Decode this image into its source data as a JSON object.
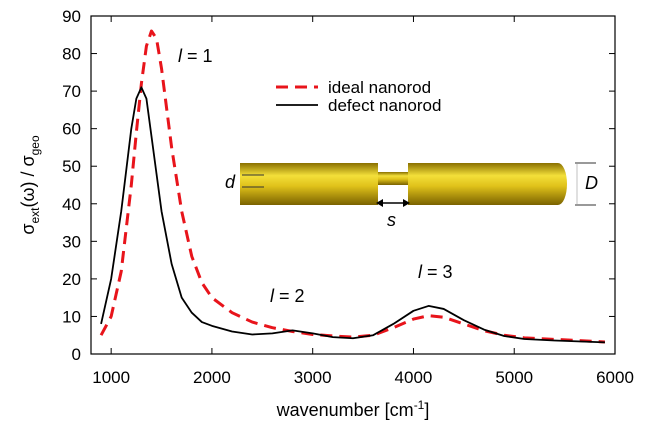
{
  "chart_data": {
    "type": "line",
    "xlabel": [
      "wavenumber [cm",
      "-1",
      "]"
    ],
    "ylabel": [
      "σ",
      "ext",
      "(ω) / σ",
      "geo"
    ],
    "annotations": [
      [
        "l",
        " = 1"
      ],
      [
        "l",
        " = 2"
      ],
      [
        "l",
        " = 3"
      ]
    ],
    "inset_labels": [
      "d",
      "D",
      "s"
    ],
    "x": [
      900,
      1000,
      1100,
      1200,
      1250,
      1300,
      1350,
      1400,
      1450,
      1500,
      1600,
      1700,
      1800,
      1900,
      2000,
      2200,
      2400,
      2600,
      2800,
      3000,
      3200,
      3400,
      3600,
      3800,
      4000,
      4150,
      4300,
      4500,
      4700,
      4900,
      5100,
      5400,
      5900
    ],
    "series": [
      {
        "name": "ideal nanorod",
        "color": "#e8141b",
        "dashed": true,
        "values": [
          5,
          10,
          22,
          45,
          59,
          72,
          82,
          86,
          84,
          76,
          55,
          38,
          26,
          19,
          15,
          11,
          8.5,
          7,
          6,
          5.2,
          4.8,
          4.5,
          5,
          7,
          9.3,
          10.2,
          9.8,
          8,
          6.2,
          5,
          4.3,
          3.9,
          3.2
        ]
      },
      {
        "name": "defect nanorod",
        "color": "#000000",
        "dashed": false,
        "values": [
          8,
          20,
          38,
          60,
          68,
          71,
          68,
          58,
          48,
          38,
          24,
          15,
          11,
          8.5,
          7.5,
          6,
          5.2,
          5.5,
          6.3,
          5.5,
          4.5,
          4.2,
          5,
          8,
          11.5,
          12.8,
          12,
          9,
          6.5,
          4.8,
          4,
          3.6,
          3.1
        ]
      }
    ],
    "xlim": [
      800,
      6000
    ],
    "xticks": [
      1000,
      2000,
      3000,
      4000,
      5000,
      6000
    ],
    "ylim": [
      0,
      90
    ],
    "yticks": [
      0,
      10,
      20,
      30,
      40,
      50,
      60,
      70,
      80,
      90
    ]
  }
}
